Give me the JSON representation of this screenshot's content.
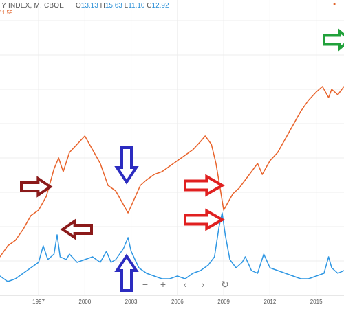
{
  "legend": {
    "symbol": "TY INDEX, M, CBOE",
    "open_label": "O",
    "open": "13.13",
    "high_label": "H",
    "high": "15.63",
    "low_label": "L",
    "low": "11.10",
    "close_label": "C",
    "close": "12.92",
    "secondary_value": "11.59"
  },
  "nav_controls": {
    "zoom_out": "−",
    "zoom_in": "+",
    "scroll_left": "‹",
    "scroll_right": "›",
    "reset": "↻"
  },
  "chart_data": {
    "type": "line",
    "x_tick_labels": [
      "1997",
      "2000",
      "2003",
      "2006",
      "2009",
      "2012",
      "2015"
    ],
    "x_domain": [
      1994.5,
      2016.8
    ],
    "y_domain": [
      0,
      1
    ],
    "series": [
      {
        "color": "#e8632b",
        "points": [
          [
            1994.5,
            0.14
          ],
          [
            1995.0,
            0.18
          ],
          [
            1995.5,
            0.2
          ],
          [
            1996.0,
            0.24
          ],
          [
            1996.5,
            0.29
          ],
          [
            1997.0,
            0.31
          ],
          [
            1997.5,
            0.36
          ],
          [
            1998.0,
            0.46
          ],
          [
            1998.3,
            0.5
          ],
          [
            1998.6,
            0.45
          ],
          [
            1999.0,
            0.52
          ],
          [
            1999.5,
            0.55
          ],
          [
            2000.0,
            0.58
          ],
          [
            2000.5,
            0.53
          ],
          [
            2001.0,
            0.48
          ],
          [
            2001.5,
            0.4
          ],
          [
            2002.0,
            0.38
          ],
          [
            2002.5,
            0.33
          ],
          [
            2002.8,
            0.3
          ],
          [
            2003.2,
            0.35
          ],
          [
            2003.6,
            0.4
          ],
          [
            2004.0,
            0.42
          ],
          [
            2004.5,
            0.44
          ],
          [
            2005.0,
            0.45
          ],
          [
            2005.5,
            0.47
          ],
          [
            2006.0,
            0.49
          ],
          [
            2006.5,
            0.51
          ],
          [
            2007.0,
            0.53
          ],
          [
            2007.5,
            0.56
          ],
          [
            2007.8,
            0.58
          ],
          [
            2008.2,
            0.55
          ],
          [
            2008.5,
            0.48
          ],
          [
            2008.8,
            0.38
          ],
          [
            2009.0,
            0.31
          ],
          [
            2009.3,
            0.34
          ],
          [
            2009.6,
            0.37
          ],
          [
            2010.0,
            0.39
          ],
          [
            2010.4,
            0.42
          ],
          [
            2010.8,
            0.45
          ],
          [
            2011.2,
            0.48
          ],
          [
            2011.5,
            0.44
          ],
          [
            2011.8,
            0.47
          ],
          [
            2012.0,
            0.49
          ],
          [
            2012.5,
            0.52
          ],
          [
            2013.0,
            0.57
          ],
          [
            2013.5,
            0.62
          ],
          [
            2014.0,
            0.67
          ],
          [
            2014.5,
            0.71
          ],
          [
            2015.0,
            0.74
          ],
          [
            2015.4,
            0.76
          ],
          [
            2015.8,
            0.72
          ],
          [
            2016.0,
            0.75
          ],
          [
            2016.4,
            0.73
          ],
          [
            2016.8,
            0.76
          ]
        ]
      },
      {
        "color": "#2f97e3",
        "points": [
          [
            1994.5,
            0.07
          ],
          [
            1995.0,
            0.05
          ],
          [
            1995.5,
            0.06
          ],
          [
            1996.0,
            0.08
          ],
          [
            1996.5,
            0.1
          ],
          [
            1997.0,
            0.12
          ],
          [
            1997.3,
            0.18
          ],
          [
            1997.6,
            0.13
          ],
          [
            1998.0,
            0.15
          ],
          [
            1998.2,
            0.22
          ],
          [
            1998.4,
            0.14
          ],
          [
            1998.8,
            0.13
          ],
          [
            1999.0,
            0.15
          ],
          [
            1999.5,
            0.12
          ],
          [
            2000.0,
            0.13
          ],
          [
            2000.5,
            0.14
          ],
          [
            2001.0,
            0.12
          ],
          [
            2001.4,
            0.16
          ],
          [
            2001.7,
            0.12
          ],
          [
            2002.0,
            0.13
          ],
          [
            2002.5,
            0.17
          ],
          [
            2002.8,
            0.21
          ],
          [
            2003.0,
            0.16
          ],
          [
            2003.5,
            0.1
          ],
          [
            2004.0,
            0.08
          ],
          [
            2004.5,
            0.07
          ],
          [
            2005.0,
            0.06
          ],
          [
            2005.5,
            0.06
          ],
          [
            2006.0,
            0.07
          ],
          [
            2006.5,
            0.06
          ],
          [
            2007.0,
            0.08
          ],
          [
            2007.5,
            0.09
          ],
          [
            2008.0,
            0.11
          ],
          [
            2008.4,
            0.14
          ],
          [
            2008.7,
            0.25
          ],
          [
            2008.9,
            0.3
          ],
          [
            2009.1,
            0.22
          ],
          [
            2009.4,
            0.13
          ],
          [
            2009.8,
            0.1
          ],
          [
            2010.2,
            0.12
          ],
          [
            2010.4,
            0.14
          ],
          [
            2010.8,
            0.09
          ],
          [
            2011.2,
            0.08
          ],
          [
            2011.6,
            0.15
          ],
          [
            2012.0,
            0.1
          ],
          [
            2012.5,
            0.09
          ],
          [
            2013.0,
            0.08
          ],
          [
            2013.5,
            0.07
          ],
          [
            2014.0,
            0.06
          ],
          [
            2014.5,
            0.06
          ],
          [
            2015.0,
            0.07
          ],
          [
            2015.5,
            0.08
          ],
          [
            2015.8,
            0.14
          ],
          [
            2016.0,
            0.1
          ],
          [
            2016.4,
            0.08
          ],
          [
            2016.8,
            0.09
          ]
        ]
      }
    ]
  },
  "annotations": {
    "arrows": [
      {
        "color": "#8b1a1a",
        "direction": "right"
      },
      {
        "color": "#8b1a1a",
        "direction": "left"
      },
      {
        "color": "#2c2cc0",
        "direction": "down"
      },
      {
        "color": "#2c2cc0",
        "direction": "up"
      },
      {
        "color": "#e02020",
        "direction": "right"
      },
      {
        "color": "#e02020",
        "direction": "right"
      },
      {
        "color": "#21a13b",
        "direction": "right"
      }
    ]
  },
  "colors": {
    "grid": "#ececec",
    "axis_text": "#555555",
    "series_1": "#e8632b",
    "series_2": "#2f97e3"
  }
}
